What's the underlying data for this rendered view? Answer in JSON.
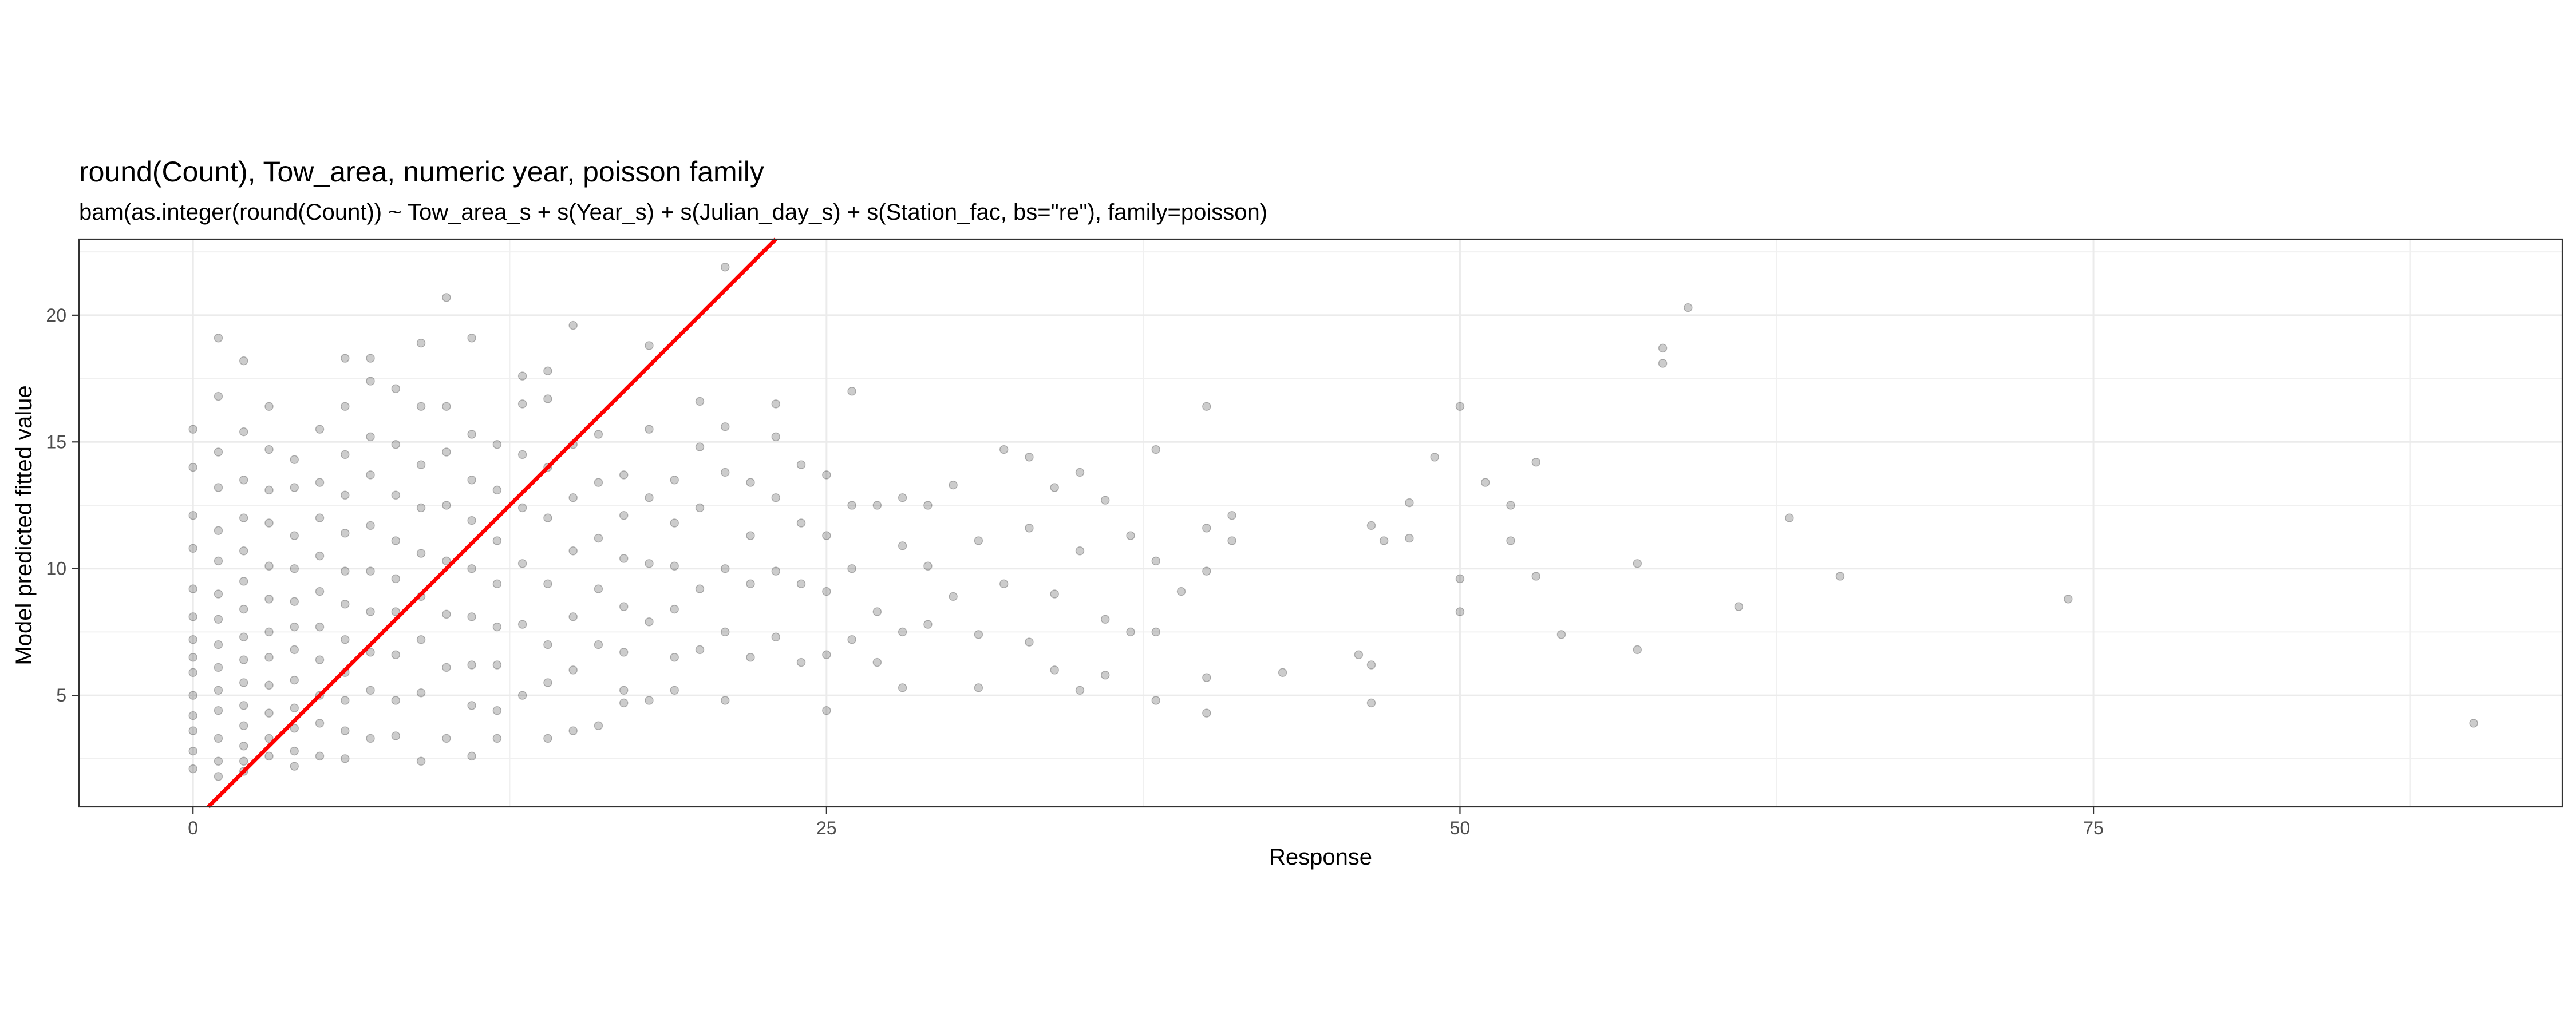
{
  "chart_data": {
    "type": "scatter",
    "title": "round(Count), Tow_area, numeric year, poisson family",
    "subtitle": "bam(as.integer(round(Count)) ~ Tow_area_s + s(Year_s) + s(Julian_day_s) + s(Station_fac, bs=\"re\"), family=poisson)",
    "xlabel": "Response",
    "ylabel": "Model predicted fitted value",
    "xlim": [
      -4.5,
      93.5
    ],
    "ylim": [
      0.6,
      23.0
    ],
    "x_ticks": [
      0,
      25,
      50,
      75
    ],
    "x_tick_labels": [
      "0",
      "25",
      "50",
      "75"
    ],
    "y_ticks": [
      5,
      10,
      15,
      20
    ],
    "y_tick_labels": [
      "5",
      "10",
      "15",
      "20"
    ],
    "grid": true,
    "legend": "none",
    "point_color": "#000000",
    "point_alpha": 0.2,
    "reference_line": {
      "type": "y = x",
      "color": "#ff0000"
    },
    "series": [
      {
        "x": [
          0,
          0,
          0,
          0,
          0,
          0,
          0,
          0,
          0,
          0,
          0,
          0,
          0,
          0,
          1,
          1,
          1,
          1,
          1,
          1,
          1,
          1,
          1,
          1,
          1,
          1,
          1,
          1,
          1,
          2,
          2,
          2,
          2,
          2,
          2,
          2,
          2,
          2,
          2,
          2,
          2,
          2,
          2,
          2,
          3,
          3,
          3,
          3,
          3,
          3,
          3,
          3,
          3,
          3,
          3,
          3,
          4,
          4,
          4,
          4,
          4,
          4,
          4,
          4,
          4,
          4,
          4,
          4,
          5,
          5,
          5,
          5,
          5,
          5,
          5,
          5,
          5,
          5,
          6,
          6,
          6,
          6,
          6,
          6,
          6,
          6,
          6,
          6,
          6,
          6,
          7,
          7,
          7,
          7,
          7,
          7,
          7,
          7,
          7,
          7,
          8,
          8,
          8,
          8,
          8,
          8,
          8,
          8,
          8,
          9,
          9,
          9,
          9,
          9,
          9,
          9,
          9,
          9,
          10,
          10,
          10,
          10,
          10,
          10,
          10,
          10,
          11,
          11,
          11,
          11,
          11,
          11,
          11,
          11,
          11,
          12,
          12,
          12,
          12,
          12,
          12,
          12,
          12,
          13,
          13,
          13,
          13,
          13,
          13,
          13,
          14,
          14,
          14,
          14,
          14,
          14,
          14,
          14,
          15,
          15,
          15,
          15,
          15,
          15,
          15,
          16,
          16,
          16,
          16,
          16,
          16,
          17,
          17,
          17,
          17,
          17,
          17,
          17,
          18,
          18,
          18,
          18,
          18,
          18,
          19,
          19,
          19,
          19,
          19,
          19,
          20,
          20,
          20,
          20,
          20,
          21,
          21,
          21,
          21,
          21,
          21,
          22,
          22,
          22,
          22,
          23,
          23,
          23,
          23,
          23,
          24,
          24,
          24,
          24,
          25,
          25,
          25,
          25,
          25,
          26,
          26,
          26,
          26,
          27,
          27,
          27,
          28,
          28,
          28,
          28,
          29,
          29,
          29,
          30,
          30,
          31,
          31,
          31,
          32,
          32,
          33,
          33,
          33,
          34,
          34,
          34,
          35,
          35,
          35,
          36,
          36,
          36,
          37,
          37,
          38,
          38,
          38,
          38,
          39,
          40,
          40,
          40,
          40,
          40,
          41,
          41,
          43,
          46,
          46.5,
          46.5,
          46.5,
          47,
          48,
          48,
          49,
          50,
          50,
          50,
          51,
          52,
          52,
          53,
          53,
          54,
          57,
          57,
          58,
          58,
          59,
          61,
          63,
          65,
          74,
          90
        ],
        "y": [
          15.5,
          14.0,
          12.1,
          10.8,
          9.2,
          8.1,
          7.2,
          6.5,
          5.9,
          5.0,
          4.2,
          3.6,
          2.8,
          2.1,
          19.1,
          16.8,
          14.6,
          13.2,
          11.5,
          10.3,
          9.0,
          8.0,
          7.0,
          6.1,
          5.2,
          4.4,
          3.3,
          2.4,
          1.8,
          18.2,
          15.4,
          13.5,
          12.0,
          10.7,
          9.5,
          8.4,
          7.3,
          6.4,
          5.5,
          4.6,
          3.8,
          3.0,
          2.4,
          2.0,
          16.4,
          14.7,
          13.1,
          11.8,
          10.1,
          8.8,
          7.5,
          6.5,
          5.4,
          4.3,
          3.3,
          2.6,
          14.3,
          13.2,
          11.3,
          10.0,
          8.7,
          7.7,
          6.8,
          5.6,
          4.5,
          3.7,
          2.8,
          2.2,
          15.5,
          13.4,
          12.0,
          10.5,
          9.1,
          7.7,
          6.4,
          5.0,
          3.9,
          2.6,
          18.3,
          16.4,
          14.5,
          12.9,
          11.4,
          9.9,
          8.6,
          7.2,
          5.9,
          4.8,
          3.6,
          2.5,
          18.3,
          17.4,
          15.2,
          13.7,
          11.7,
          9.9,
          8.3,
          6.7,
          5.2,
          3.3,
          17.1,
          14.9,
          12.9,
          11.1,
          9.6,
          8.3,
          6.6,
          4.8,
          3.4,
          18.9,
          16.4,
          14.1,
          12.4,
          10.6,
          8.9,
          7.2,
          5.1,
          2.4,
          20.7,
          16.4,
          14.6,
          12.5,
          10.3,
          8.2,
          6.1,
          3.3,
          19.1,
          15.3,
          13.5,
          11.9,
          10.0,
          8.1,
          6.2,
          4.6,
          2.6,
          14.9,
          13.1,
          11.1,
          9.4,
          7.7,
          6.2,
          4.4,
          3.3,
          17.6,
          16.5,
          14.5,
          12.4,
          10.2,
          7.8,
          5.0,
          17.8,
          16.7,
          14.0,
          12.0,
          9.4,
          7.0,
          5.5,
          3.3,
          19.6,
          14.9,
          12.8,
          10.7,
          8.1,
          6.0,
          3.6,
          15.3,
          13.4,
          11.2,
          9.2,
          7.0,
          3.8,
          13.7,
          12.1,
          10.4,
          8.5,
          6.7,
          5.2,
          4.7,
          18.8,
          15.5,
          12.8,
          10.2,
          7.9,
          4.8,
          13.5,
          11.8,
          10.1,
          8.4,
          6.5,
          5.2,
          16.6,
          14.8,
          12.4,
          9.2,
          6.8,
          21.9,
          15.6,
          13.8,
          10.0,
          7.5,
          4.8,
          13.4,
          11.3,
          9.4,
          6.5,
          16.5,
          15.2,
          12.8,
          9.9,
          7.3,
          14.1,
          11.8,
          9.4,
          6.3,
          13.7,
          11.3,
          9.1,
          6.6,
          4.4,
          17.0,
          12.5,
          10.0,
          7.2,
          12.5,
          8.3,
          6.3,
          12.8,
          10.9,
          7.5,
          5.3,
          12.5,
          10.1,
          7.8,
          13.3,
          8.9,
          11.1,
          7.4,
          5.3,
          14.7,
          9.4,
          14.4,
          11.6,
          7.1,
          13.2,
          9.0,
          6.0,
          13.8,
          10.7,
          5.2,
          12.7,
          8.0,
          5.8,
          11.3,
          7.5,
          14.7,
          10.3,
          7.5,
          4.8,
          9.1,
          16.4,
          11.6,
          9.9,
          5.7,
          4.3,
          11.1,
          12.1,
          5.9,
          6.6,
          11.7,
          6.2,
          4.7,
          11.1,
          12.6,
          11.2,
          14.4,
          16.4,
          9.6,
          8.3,
          13.4,
          12.5,
          11.1,
          14.2,
          9.7,
          7.4,
          10.2,
          6.8,
          18.7,
          18.1,
          20.3,
          8.5,
          12.0,
          9.7,
          8.8,
          3.9
        ]
      }
    ]
  }
}
